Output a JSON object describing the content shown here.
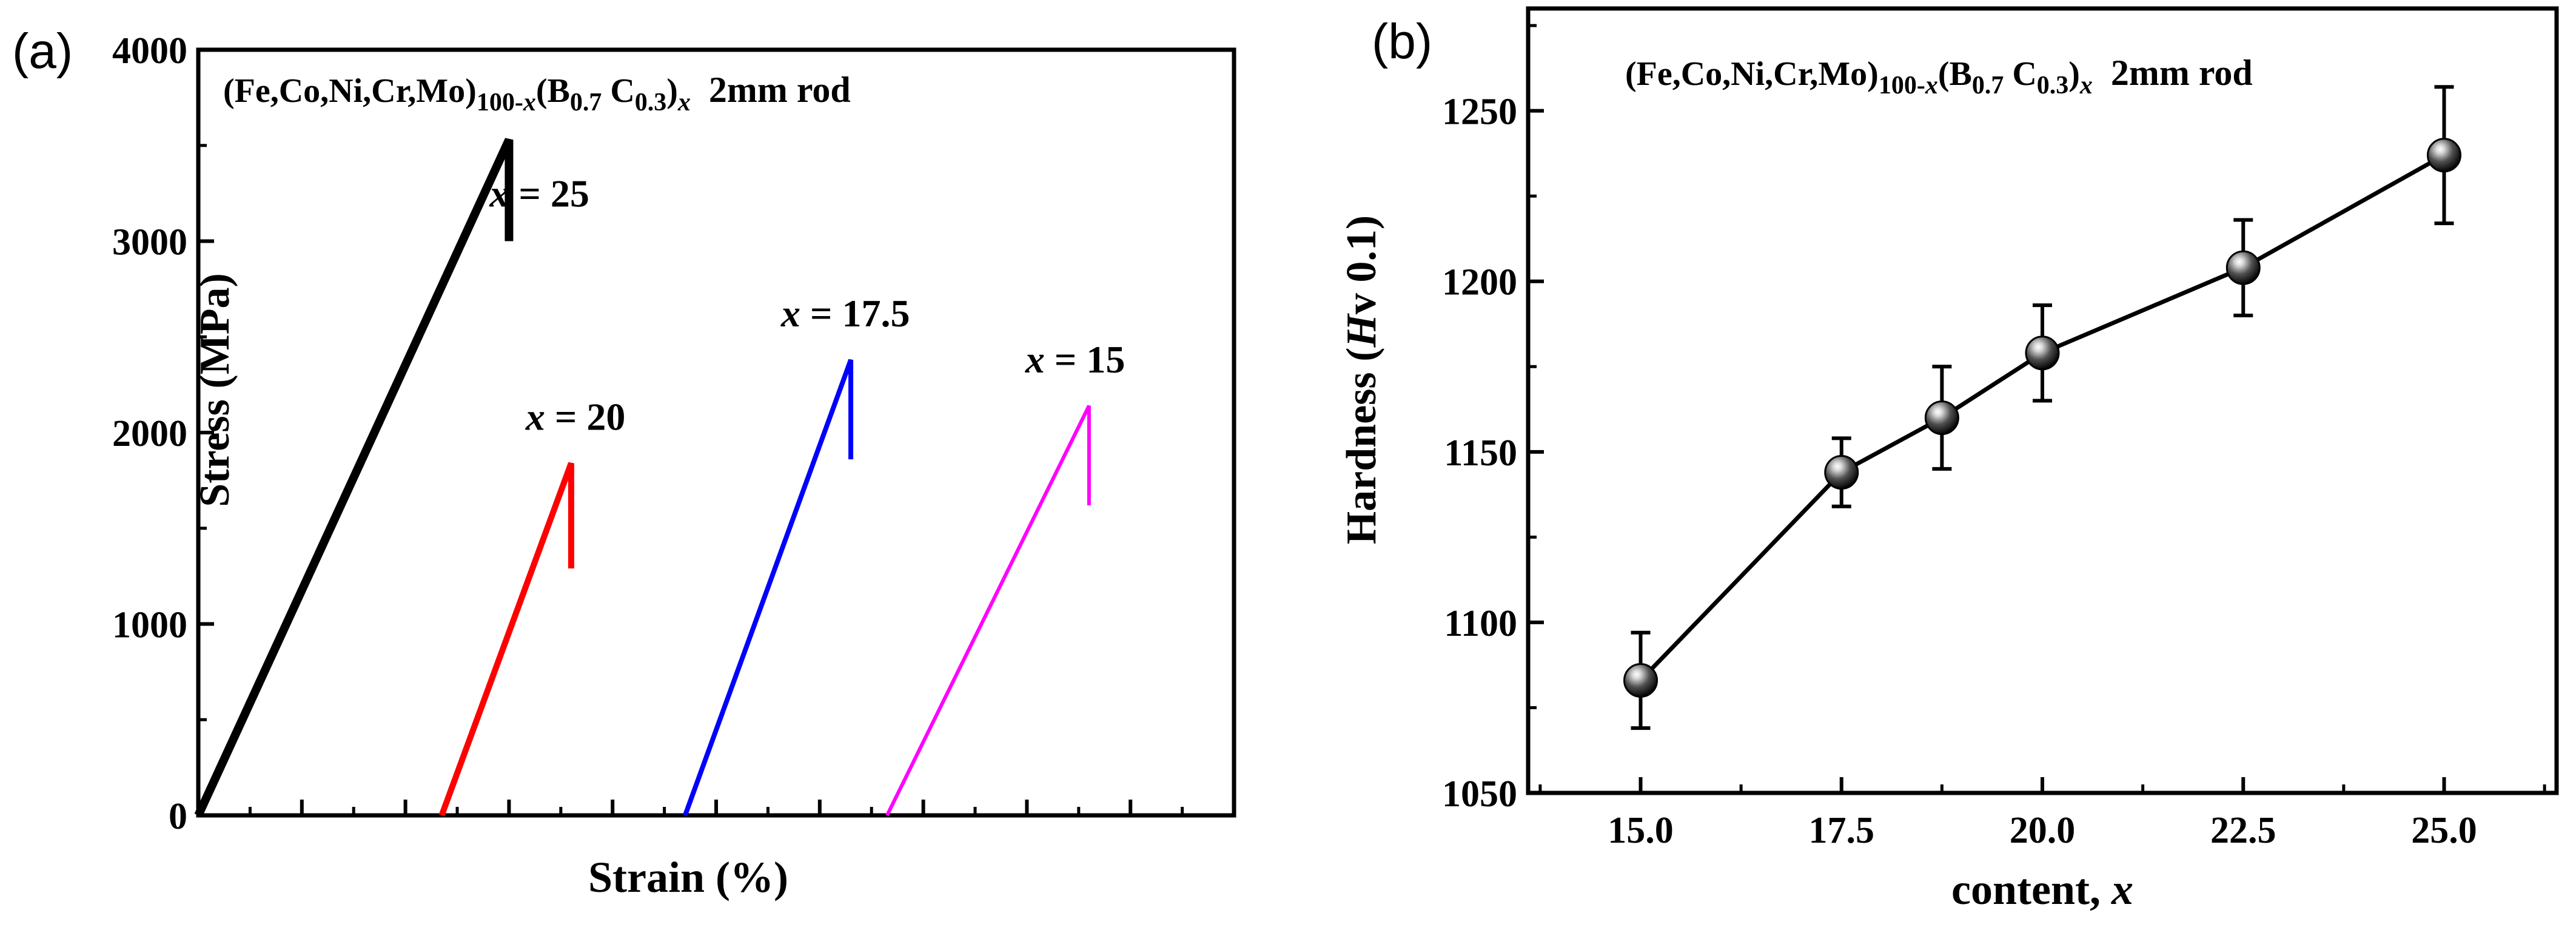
{
  "chart_data": [
    {
      "panel_label": "(a)",
      "type": "line",
      "title": "(Fe,Co,Ni,Cr,Mo)100-x(B0.7 C0.3)x 2mm rod",
      "title_parts": {
        "main": "(Fe,Co,Ni,Cr,Mo)",
        "sub1": "100-",
        "sub1_var": "x",
        "mid": "(B",
        "sub2": "0.7",
        "mid2": " C",
        "sub3": "0.3",
        "end": ")",
        "sub4_var": "x",
        "tail": "2mm rod"
      },
      "xlabel": "Strain (%)",
      "ylabel": "Stress (MPa)",
      "ylim": [
        0,
        4000
      ],
      "xlim": [
        0,
        10
      ],
      "yticks": [
        "0",
        "1000",
        "2000",
        "3000",
        "4000"
      ],
      "x_tick_labels_shown": false,
      "series": [
        {
          "name": "x = 25",
          "label_var": "x",
          "label_value": "= 25",
          "color": "#000000",
          "x": [
            0,
            3.0,
            3.0
          ],
          "y": [
            0,
            3530,
            3000
          ]
        },
        {
          "name": "x = 20",
          "label_var": "x",
          "label_value": "= 20",
          "color": "#ff0000",
          "x": [
            2.35,
            3.6,
            3.6
          ],
          "y": [
            0,
            1840,
            1290
          ]
        },
        {
          "name": "x = 17.5",
          "label_var": "x",
          "label_value": "= 17.5",
          "color": "#0000ff",
          "x": [
            4.7,
            6.3,
            6.3
          ],
          "y": [
            0,
            2380,
            1860
          ]
        },
        {
          "name": "x = 15",
          "label_var": "x",
          "label_value": "= 15",
          "color": "#ff00ff",
          "x": [
            6.65,
            8.6,
            8.6
          ],
          "y": [
            0,
            2140,
            1620
          ]
        }
      ]
    },
    {
      "panel_label": "(b)",
      "type": "line",
      "title": "(Fe,Co,Ni,Cr,Mo)100-x(B0.7 C0.3)x 2mm rod",
      "title_parts": {
        "main": "(Fe,Co,Ni,Cr,Mo)",
        "sub1": "100-",
        "sub1_var": "x",
        "mid": "(B",
        "sub2": "0.7",
        "mid2": " C",
        "sub3": "0.3",
        "end": ")",
        "sub4_var": "x",
        "tail": "2mm rod"
      },
      "xlabel": "content, x",
      "xlabel_parts": {
        "text": "content, ",
        "var": "x"
      },
      "ylabel": "Hardness (Hv 0.1)",
      "ylabel_parts": {
        "pre": "Hardness (",
        "var": "H",
        "post": "v 0.1)"
      },
      "xlim": [
        13.6,
        26.4
      ],
      "ylim": [
        1050,
        1280
      ],
      "xticks": [
        "15.0",
        "17.5",
        "20.0",
        "22.5",
        "25.0"
      ],
      "yticks": [
        "1050",
        "1100",
        "1150",
        "1200",
        "1250"
      ],
      "series": [
        {
          "name": "Hardness",
          "color": "#000000",
          "x": [
            15.0,
            17.5,
            18.75,
            20.0,
            22.5,
            25.0
          ],
          "y": [
            1083,
            1144,
            1160,
            1179,
            1204,
            1237
          ],
          "err": [
            14,
            10,
            15,
            14,
            14,
            20
          ]
        }
      ]
    }
  ]
}
